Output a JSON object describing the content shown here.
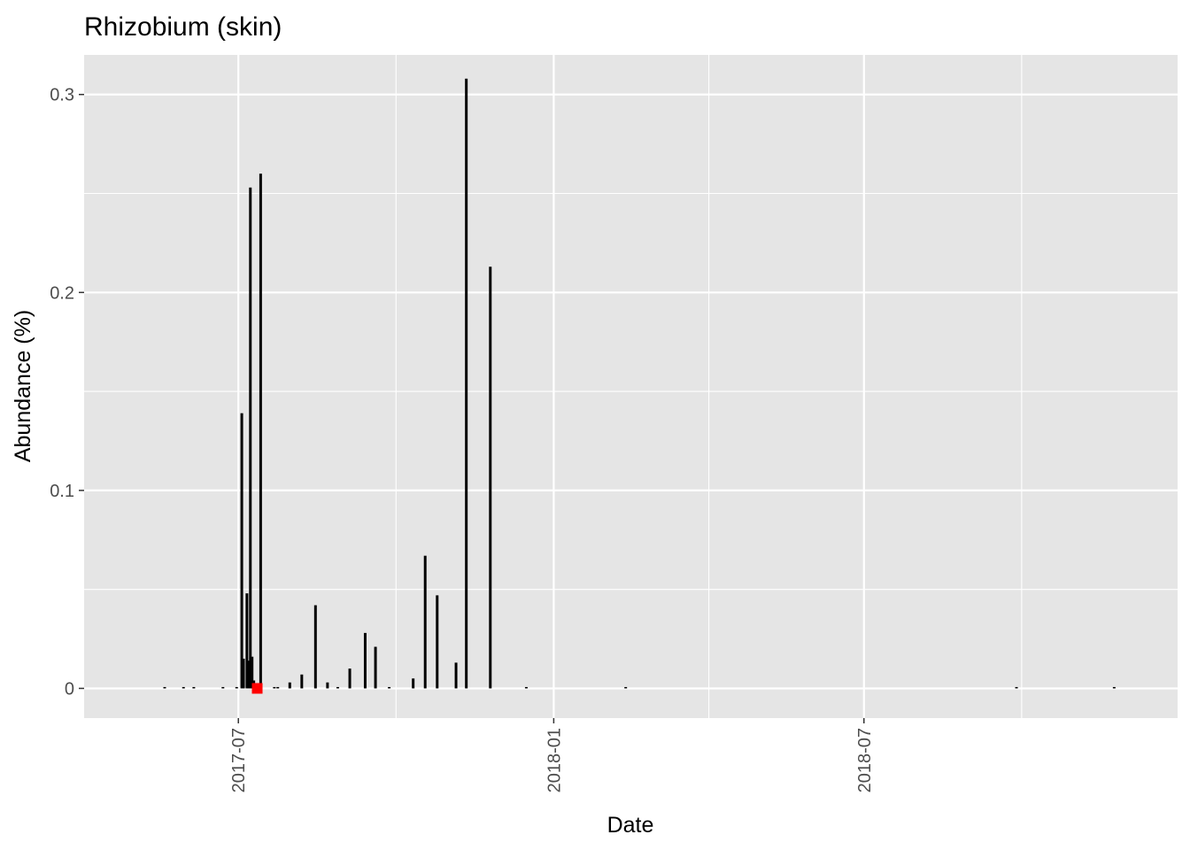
{
  "chart_data": {
    "type": "bar",
    "title": "Rhizobium (skin)",
    "xlabel": "Date",
    "ylabel": "Abundance (%)",
    "x_axis_type": "date",
    "xlim": [
      "2017-04-02",
      "2018-12-31"
    ],
    "ylim": [
      -0.015,
      0.32
    ],
    "x_ticks": [
      "2017-07-01",
      "2018-01-01",
      "2018-07-01"
    ],
    "x_tick_labels": [
      "2017-07",
      "2018-01",
      "2018-07"
    ],
    "y_ticks": [
      0,
      0.1,
      0.2,
      0.3
    ],
    "y_tick_labels": [
      "0",
      "0.1",
      "0.2",
      "0.3"
    ],
    "grid": true,
    "legend": "none",
    "colors": {
      "panel": "#e5e5e5",
      "grid": "#ffffff",
      "bar": "#000000",
      "highlight": "#ff0000"
    },
    "series": [
      {
        "points": [
          {
            "x": "2017-05-19",
            "y": 0.0005
          },
          {
            "x": "2017-05-30",
            "y": 0.0005
          },
          {
            "x": "2017-06-05",
            "y": 0.0005
          },
          {
            "x": "2017-06-22",
            "y": 0.0005
          },
          {
            "x": "2017-06-30",
            "y": 0.0005
          },
          {
            "x": "2017-07-03",
            "y": 0.139
          },
          {
            "x": "2017-07-04",
            "y": 0.015
          },
          {
            "x": "2017-07-06",
            "y": 0.048
          },
          {
            "x": "2017-07-07",
            "y": 0.014
          },
          {
            "x": "2017-07-08",
            "y": 0.253
          },
          {
            "x": "2017-07-09",
            "y": 0.016
          },
          {
            "x": "2017-07-10",
            "y": 0.004
          },
          {
            "x": "2017-07-14",
            "y": 0.26
          },
          {
            "x": "2017-07-22",
            "y": 0.0005
          },
          {
            "x": "2017-07-24",
            "y": 0.0005
          },
          {
            "x": "2017-07-31",
            "y": 0.003
          },
          {
            "x": "2017-08-07",
            "y": 0.007
          },
          {
            "x": "2017-08-15",
            "y": 0.042
          },
          {
            "x": "2017-08-22",
            "y": 0.003
          },
          {
            "x": "2017-08-28",
            "y": 0.0005
          },
          {
            "x": "2017-09-04",
            "y": 0.01
          },
          {
            "x": "2017-09-13",
            "y": 0.028
          },
          {
            "x": "2017-09-19",
            "y": 0.021
          },
          {
            "x": "2017-09-27",
            "y": 0.0005
          },
          {
            "x": "2017-10-11",
            "y": 0.005
          },
          {
            "x": "2017-10-18",
            "y": 0.067
          },
          {
            "x": "2017-10-25",
            "y": 0.047
          },
          {
            "x": "2017-11-05",
            "y": 0.013
          },
          {
            "x": "2017-11-11",
            "y": 0.308
          },
          {
            "x": "2017-11-25",
            "y": 0.213
          },
          {
            "x": "2017-12-16",
            "y": 0.0005
          },
          {
            "x": "2018-02-12",
            "y": 0.0005
          },
          {
            "x": "2018-09-28",
            "y": 0.0005
          },
          {
            "x": "2018-11-24",
            "y": 0.0005
          }
        ]
      }
    ],
    "highlight_point": {
      "x": "2017-07-12",
      "y": 0
    }
  }
}
